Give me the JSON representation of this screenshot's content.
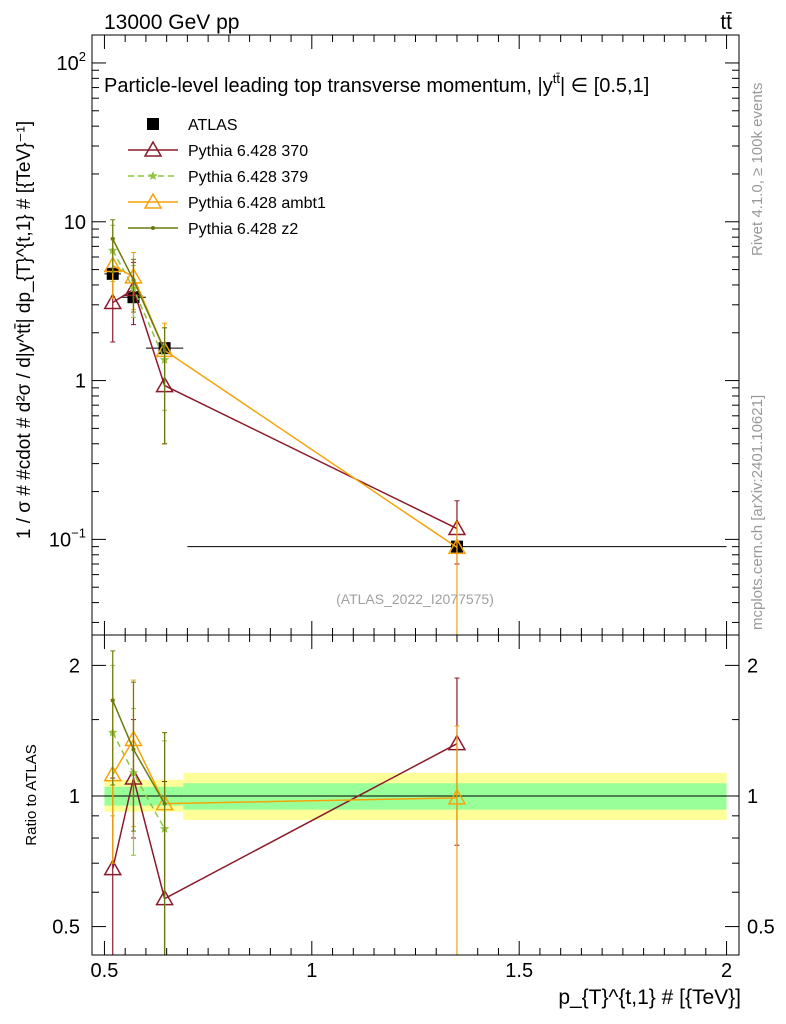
{
  "header": {
    "energy_label": "13000 GeV pp",
    "process_label": "tt̄",
    "plot_title": "Particle-level leading top transverse momentum, |y",
    "plot_title_sup": "tt̄",
    "plot_title_tail": "| ∈ [0.5,1]",
    "ylabel_main": "1 / σ # #cdot # d²σ / d|y^tt̄| dp_{T}^{t,1} # [{TeV}⁻¹]",
    "ylabel_ratio": "Ratio to ATLAS",
    "xlabel": "p_{T}^{t,1} # [{TeV}]",
    "watermark": "(ATLAS_2022_I2077575)",
    "side_rivet": "Rivet 4.1.0, ≥ 100k events",
    "side_mcplots": "mcplots.cern.ch [arXiv:2401.10621]"
  },
  "colors": {
    "atlas": "#000000",
    "p370": "#8b1a2b",
    "p379": "#8ec63f",
    "ambt1": "#f5a30a",
    "z2": "#6b7a10",
    "band_inner": "#99ff99",
    "band_outer": "#ffff99"
  },
  "chart_data": [
    {
      "type": "scatter",
      "name": "main",
      "yscale": "log",
      "xlim": [
        0.47,
        2.03
      ],
      "ylim": [
        0.025,
        150
      ],
      "y_ticks": [
        {
          "v": 100,
          "base": "10",
          "exp": "2"
        },
        {
          "v": 10,
          "base": "10",
          "exp": ""
        },
        {
          "v": 1,
          "base": "1",
          "exp": ""
        },
        {
          "v": 0.1,
          "base": "10",
          "exp": "−1"
        }
      ],
      "legend": [
        {
          "key": "atlas",
          "label": "ATLAS"
        },
        {
          "key": "p370",
          "label": "Pythia 6.428 370"
        },
        {
          "key": "p379",
          "label": "Pythia 6.428 379"
        },
        {
          "key": "ambt1",
          "label": "Pythia 6.428 ambt1"
        },
        {
          "key": "z2",
          "label": "Pythia 6.428 z2"
        }
      ],
      "atlas": {
        "x": [
          0.52,
          0.57,
          0.645,
          1.35
        ],
        "y": [
          4.7,
          3.35,
          1.6,
          0.09
        ],
        "xerr": [
          0.02,
          0.03,
          0.045,
          0.65
        ]
      },
      "series": [
        {
          "key": "p370",
          "marker": "triangle",
          "dash": false,
          "x": [
            0.52,
            0.57,
            0.645,
            1.35
          ],
          "y": [
            3.1,
            3.75,
            0.93,
            0.117
          ],
          "yerr_lo": [
            1.35,
            1.5,
            0.53,
            0.047
          ],
          "yerr_hi": [
            2.0,
            1.8,
            0.8,
            0.058
          ]
        },
        {
          "key": "p379",
          "marker": "star",
          "dash": true,
          "x": [
            0.52,
            0.57,
            0.645
          ],
          "y": [
            6.6,
            3.8,
            1.35
          ],
          "yerr_lo": [
            2.4,
            1.3,
            0.7
          ],
          "yerr_hi": [
            2.9,
            1.5,
            0.8
          ]
        },
        {
          "key": "ambt1",
          "marker": "triangle",
          "dash": false,
          "x": [
            0.52,
            0.57,
            0.645,
            1.35
          ],
          "y": [
            5.3,
            4.5,
            1.55,
            0.089
          ],
          "yerr_lo": [
            2.0,
            1.7,
            1.15,
            0.065
          ],
          "yerr_hi": [
            2.6,
            1.9,
            0.75,
            0.04
          ]
        },
        {
          "key": "z2",
          "marker": "dot",
          "dash": false,
          "x": [
            0.52,
            0.57,
            0.645
          ],
          "y": [
            7.8,
            4.3,
            1.55
          ],
          "yerr_lo": [
            3.0,
            1.6,
            1.15
          ],
          "yerr_hi": [
            2.5,
            1.5,
            0.6
          ]
        }
      ]
    },
    {
      "type": "scatter",
      "name": "ratio",
      "yscale": "log",
      "xlim": [
        0.47,
        2.03
      ],
      "ylim": [
        0.43,
        2.35
      ],
      "y_ticks": [
        {
          "v": 2,
          "label": "2"
        },
        {
          "v": 1,
          "label": "1"
        },
        {
          "v": 0.5,
          "label": "0.5"
        }
      ],
      "x_ticks": [
        {
          "v": 0.5,
          "label": "0.5"
        },
        {
          "v": 1,
          "label": "1"
        },
        {
          "v": 1.5,
          "label": "1.5"
        },
        {
          "v": 2,
          "label": "2"
        }
      ],
      "bands": [
        {
          "x0": 0.5,
          "x1": 0.54,
          "inner": [
            0.95,
            1.05
          ],
          "outer": [
            0.92,
            1.09
          ]
        },
        {
          "x0": 0.54,
          "x1": 0.6,
          "inner": [
            0.95,
            1.05
          ],
          "outer": [
            0.92,
            1.09
          ]
        },
        {
          "x0": 0.6,
          "x1": 0.69,
          "inner": [
            0.95,
            1.05
          ],
          "outer": [
            0.92,
            1.09
          ]
        },
        {
          "x0": 0.69,
          "x1": 2.0,
          "inner": [
            0.93,
            1.07
          ],
          "outer": [
            0.88,
            1.13
          ]
        }
      ],
      "series": [
        {
          "key": "p370",
          "marker": "triangle",
          "dash": false,
          "x": [
            0.52,
            0.57,
            0.645,
            1.35
          ],
          "y": [
            0.68,
            1.1,
            0.58,
            1.32
          ],
          "yerr_lo": [
            0.3,
            0.3,
            0.2,
            0.55
          ],
          "yerr_hi": [
            0.42,
            0.4,
            0.5,
            0.55
          ]
        },
        {
          "key": "p379",
          "marker": "star",
          "dash": true,
          "x": [
            0.52,
            0.57,
            0.645
          ],
          "y": [
            1.4,
            1.13,
            0.84
          ],
          "yerr_lo": [
            0.5,
            0.4,
            0.44
          ],
          "yerr_hi": [
            0.6,
            0.46,
            0.5
          ]
        },
        {
          "key": "ambt1",
          "marker": "triangle",
          "dash": false,
          "x": [
            0.52,
            0.57,
            0.645,
            1.35
          ],
          "y": [
            1.12,
            1.35,
            0.96,
            0.99
          ],
          "yerr_lo": [
            0.42,
            0.5,
            0.55,
            0.62
          ],
          "yerr_hi": [
            0.55,
            0.5,
            0.44,
            0.46
          ]
        },
        {
          "key": "z2",
          "marker": "dot",
          "dash": false,
          "x": [
            0.52,
            0.57,
            0.645
          ],
          "y": [
            1.66,
            1.28,
            0.96
          ],
          "yerr_lo": [
            0.6,
            0.45,
            0.55
          ],
          "yerr_hi": [
            0.5,
            0.55,
            0.44
          ]
        }
      ]
    }
  ]
}
